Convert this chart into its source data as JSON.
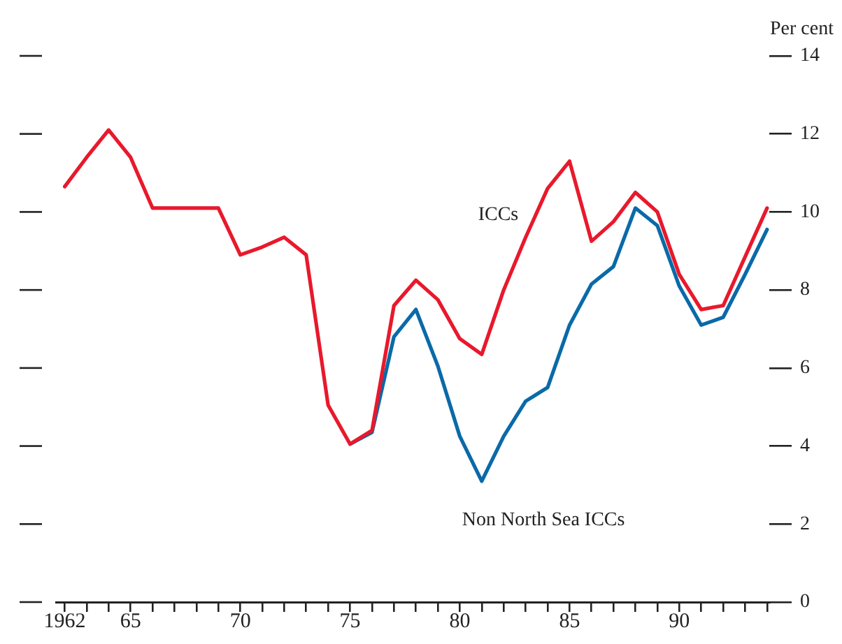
{
  "chart_data": {
    "type": "line",
    "ylabel": "Per cent",
    "x": [
      1962,
      1963,
      1964,
      1965,
      1966,
      1967,
      1968,
      1969,
      1970,
      1971,
      1972,
      1973,
      1974,
      1975,
      1976,
      1977,
      1978,
      1979,
      1980,
      1981,
      1982,
      1983,
      1984,
      1985,
      1986,
      1987,
      1988,
      1989,
      1990,
      1991,
      1992,
      1993,
      1994
    ],
    "series": [
      {
        "name": "ICCs",
        "color": "#e8192c",
        "values": [
          10.65,
          11.4,
          12.1,
          11.4,
          10.1,
          10.1,
          10.1,
          10.1,
          8.9,
          9.1,
          9.35,
          8.9,
          5.05,
          4.05,
          4.4,
          7.6,
          8.25,
          7.75,
          6.75,
          6.35,
          8.0,
          9.35,
          10.6,
          11.3,
          9.25,
          9.75,
          10.5,
          10.0,
          8.4,
          7.5,
          7.6,
          8.85,
          10.1
        ]
      },
      {
        "name": "Non North Sea ICCs",
        "color": "#0a6aa8",
        "values": [
          null,
          null,
          null,
          null,
          null,
          null,
          null,
          null,
          null,
          null,
          null,
          null,
          null,
          4.05,
          4.35,
          6.8,
          7.5,
          6.05,
          4.25,
          3.1,
          4.25,
          5.15,
          5.5,
          7.1,
          8.15,
          8.6,
          10.1,
          9.65,
          8.1,
          7.1,
          7.3,
          8.4,
          9.55
        ]
      }
    ],
    "xlim": [
      1961.6,
      1994.1
    ],
    "xticks": [
      {
        "value": 1962,
        "label": "1962"
      },
      {
        "value": 1963,
        "label": null
      },
      {
        "value": 1964,
        "label": null
      },
      {
        "value": 1965,
        "label": "65"
      },
      {
        "value": 1966,
        "label": null
      },
      {
        "value": 1967,
        "label": null
      },
      {
        "value": 1968,
        "label": null
      },
      {
        "value": 1969,
        "label": null
      },
      {
        "value": 1970,
        "label": "70"
      },
      {
        "value": 1971,
        "label": null
      },
      {
        "value": 1972,
        "label": null
      },
      {
        "value": 1973,
        "label": null
      },
      {
        "value": 1974,
        "label": null
      },
      {
        "value": 1975,
        "label": "75"
      },
      {
        "value": 1976,
        "label": null
      },
      {
        "value": 1977,
        "label": null
      },
      {
        "value": 1978,
        "label": null
      },
      {
        "value": 1979,
        "label": null
      },
      {
        "value": 1980,
        "label": "80"
      },
      {
        "value": 1981,
        "label": null
      },
      {
        "value": 1982,
        "label": null
      },
      {
        "value": 1983,
        "label": null
      },
      {
        "value": 1984,
        "label": null
      },
      {
        "value": 1985,
        "label": "85"
      },
      {
        "value": 1986,
        "label": null
      },
      {
        "value": 1987,
        "label": null
      },
      {
        "value": 1988,
        "label": null
      },
      {
        "value": 1989,
        "label": null
      },
      {
        "value": 1990,
        "label": "90"
      },
      {
        "value": 1991,
        "label": null
      },
      {
        "value": 1992,
        "label": null
      },
      {
        "value": 1993,
        "label": null
      },
      {
        "value": 1994,
        "label": null
      }
    ],
    "ylim": [
      0,
      14
    ],
    "yticks": [
      0,
      2,
      4,
      6,
      8,
      10,
      12,
      14
    ],
    "grid": false,
    "legend": false,
    "marker": "none",
    "line_style": "solid"
  }
}
